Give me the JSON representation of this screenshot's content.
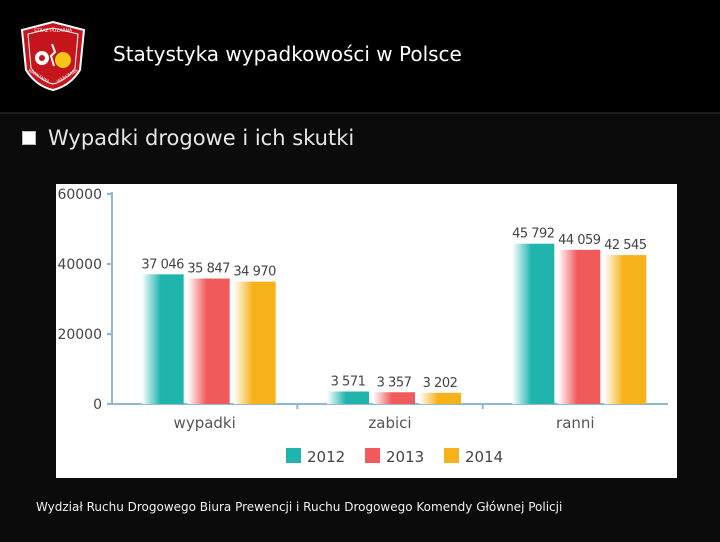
{
  "header": {
    "title": "Statystyka wypadkowości w Polsce",
    "logo_top_text": "STRAŻ POŻARNA",
    "logo_bottom_left": "WARSZAWA",
    "logo_bottom_right": "WARSZAWA"
  },
  "content": {
    "subtitle": "Wypadki drogowe i ich skutki",
    "footer": "Wydział Ruchu Drogowego Biura Prewencji i Ruchu Drogowego Komendy Głównej Policji"
  },
  "colors": {
    "s2012": "#1fb5ad",
    "s2013": "#f05a5a",
    "s2014": "#f7b21b",
    "axis": "#8fb8d8"
  },
  "chart_data": {
    "type": "bar",
    "categories": [
      "wypadki",
      "zabici",
      "ranni"
    ],
    "series": [
      {
        "name": "2012",
        "values": [
          37046,
          3571,
          45792
        ],
        "labels": [
          "37 046",
          "3 571",
          "45 792"
        ]
      },
      {
        "name": "2013",
        "values": [
          35847,
          3357,
          44059
        ],
        "labels": [
          "35 847",
          "3 357",
          "44 059"
        ]
      },
      {
        "name": "2014",
        "values": [
          34970,
          3202,
          42545
        ],
        "labels": [
          "34 970",
          "3 202",
          "42 545"
        ]
      }
    ],
    "yticks": [
      "0",
      "20000",
      "40000",
      "60000"
    ],
    "ylim": [
      0,
      60000
    ],
    "legend": "bottom",
    "grid": false
  }
}
